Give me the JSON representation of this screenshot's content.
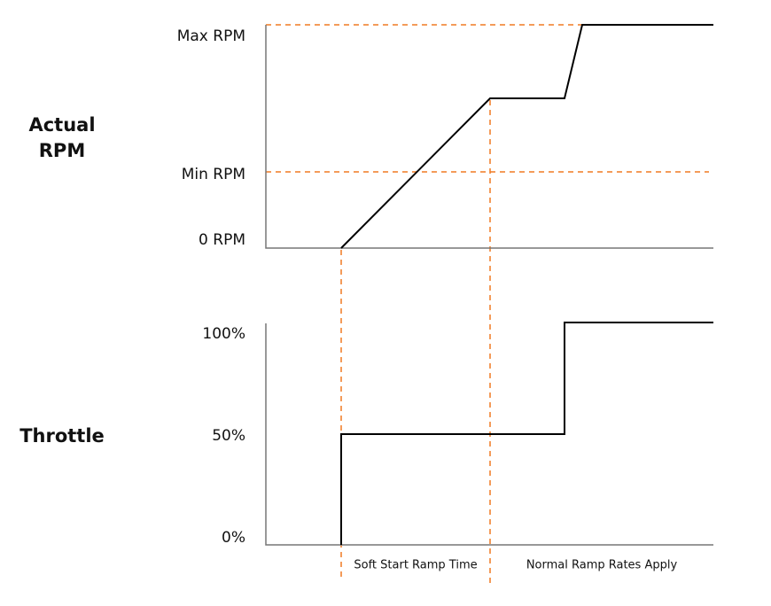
{
  "rpm_panel": {
    "title_lines": [
      "Actual",
      "RPM"
    ],
    "levels": [
      "Max RPM",
      "Min RPM",
      "0 RPM"
    ]
  },
  "throttle_panel": {
    "title": "Throttle",
    "levels": [
      "100%",
      "50%",
      "0%"
    ]
  },
  "phases": [
    "Soft Start Ramp Time",
    "Normal Ramp Rates Apply"
  ]
}
